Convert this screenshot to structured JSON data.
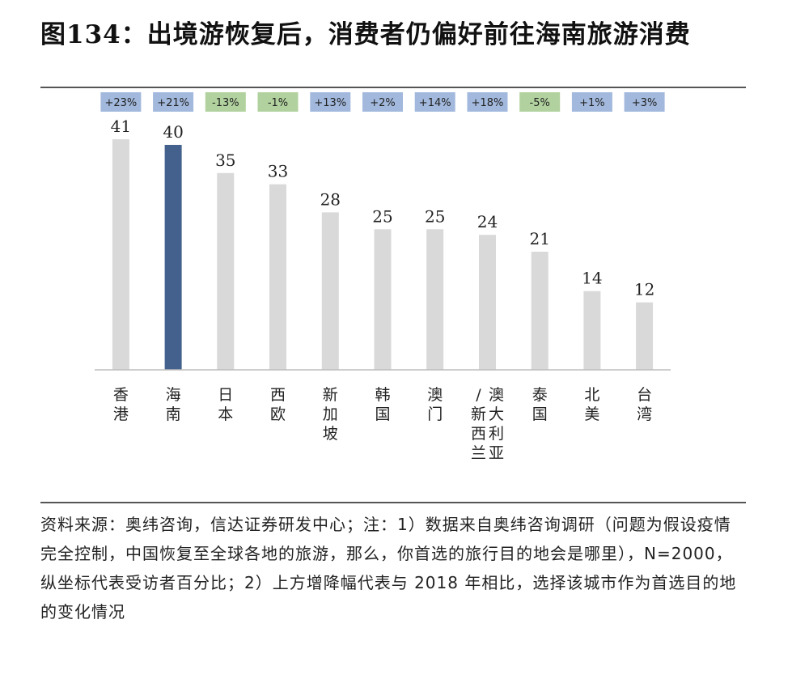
{
  "title": "图134：出境游恢复后，消费者仍偏好前往海南旅游消费",
  "source": "资料来源：奥纬咨询，信达证券研发中心；注：1）数据来自奥纬咨询调研（问题为假设疫情完全控制，中国恢复至全球各地的旅游，那么，你首选的旅行目的地会是哪里），N=2000，纵坐标代表受访者百分比；2）上方增降幅代表与 2018 年相比，选择该城市作为首选目的地的变化情况",
  "colors": {
    "bar_default": "#d9d9d9",
    "bar_highlight": "#44618d",
    "change_positive": "#a2b9dd",
    "change_negative": "#b1d29e"
  },
  "chart_data": {
    "type": "bar",
    "categories": [
      "香港",
      "海南",
      "日本",
      "西欧",
      "新加坡",
      "韩国",
      "澳门",
      "澳大利亚/新西兰",
      "泰国",
      "北美",
      "台湾"
    ],
    "label_columns": [
      [
        "香港"
      ],
      [
        "海南"
      ],
      [
        "日本"
      ],
      [
        "西欧"
      ],
      [
        "新加坡"
      ],
      [
        "韩国"
      ],
      [
        "澳门"
      ],
      [
        "/新西兰",
        "澳大利亚"
      ],
      [
        "泰国"
      ],
      [
        "北美"
      ],
      [
        "台湾"
      ]
    ],
    "values": [
      41,
      40,
      35,
      33,
      28,
      25,
      25,
      24,
      21,
      14,
      12
    ],
    "change_vs_2018": [
      "+23%",
      "+21%",
      "-13%",
      "-1%",
      "+13%",
      "+2%",
      "+14%",
      "+18%",
      "-5%",
      "+1%",
      "+3%"
    ],
    "highlight": "海南",
    "ylim": [
      0,
      45
    ],
    "grid": false,
    "legend": "none"
  }
}
